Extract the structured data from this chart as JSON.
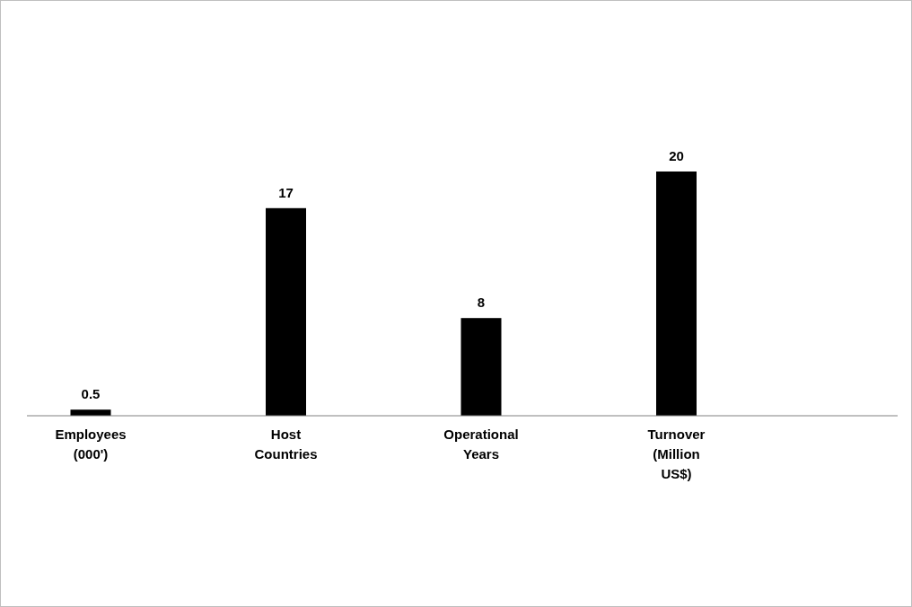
{
  "chart_data": {
    "type": "bar",
    "categories": [
      "Employees (000')",
      "Host Countries",
      "Operational Years",
      "Turnover (Million US$)"
    ],
    "values": [
      0.5,
      17,
      8,
      20
    ],
    "color": "#000000",
    "data_labels": true
  }
}
